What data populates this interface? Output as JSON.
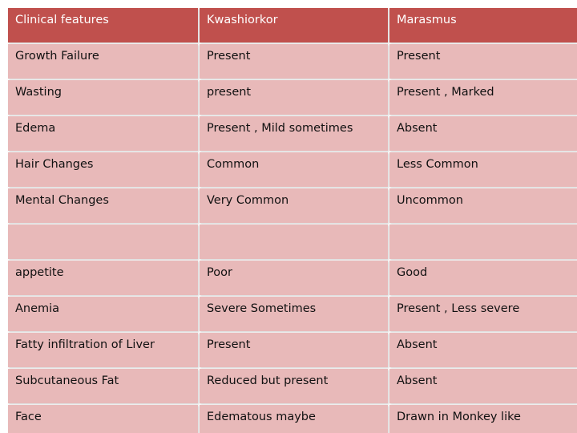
{
  "table": {
    "header": [
      "Clinical features",
      "Kwashiorkor",
      "Marasmus"
    ],
    "rows": [
      [
        "Growth  Failure",
        "Present",
        "Present"
      ],
      [
        "Wasting",
        "present",
        "Present , Marked"
      ],
      [
        "Edema",
        "Present , Mild sometimes",
        "Absent"
      ],
      [
        "Hair Changes",
        "Common",
        "Less Common"
      ],
      [
        "Mental Changes",
        "Very Common",
        "Uncommon"
      ],
      [
        "",
        "",
        ""
      ],
      [
        "appetite",
        "Poor",
        "Good"
      ],
      [
        "Anemia",
        "Severe Sometimes",
        "Present , Less severe"
      ],
      [
        "Fatty infiltration of Liver",
        "Present",
        "Absent"
      ],
      [
        "Subcutaneous Fat",
        "Reduced but present",
        "Absent"
      ],
      [
        "Face",
        "Edematous maybe",
        "Drawn in Monkey like"
      ]
    ]
  },
  "colors": {
    "header_fill": "#c0504d",
    "row_fill": "#e8b9b9",
    "header_text": "#ffffff",
    "body_text": "#111111"
  }
}
